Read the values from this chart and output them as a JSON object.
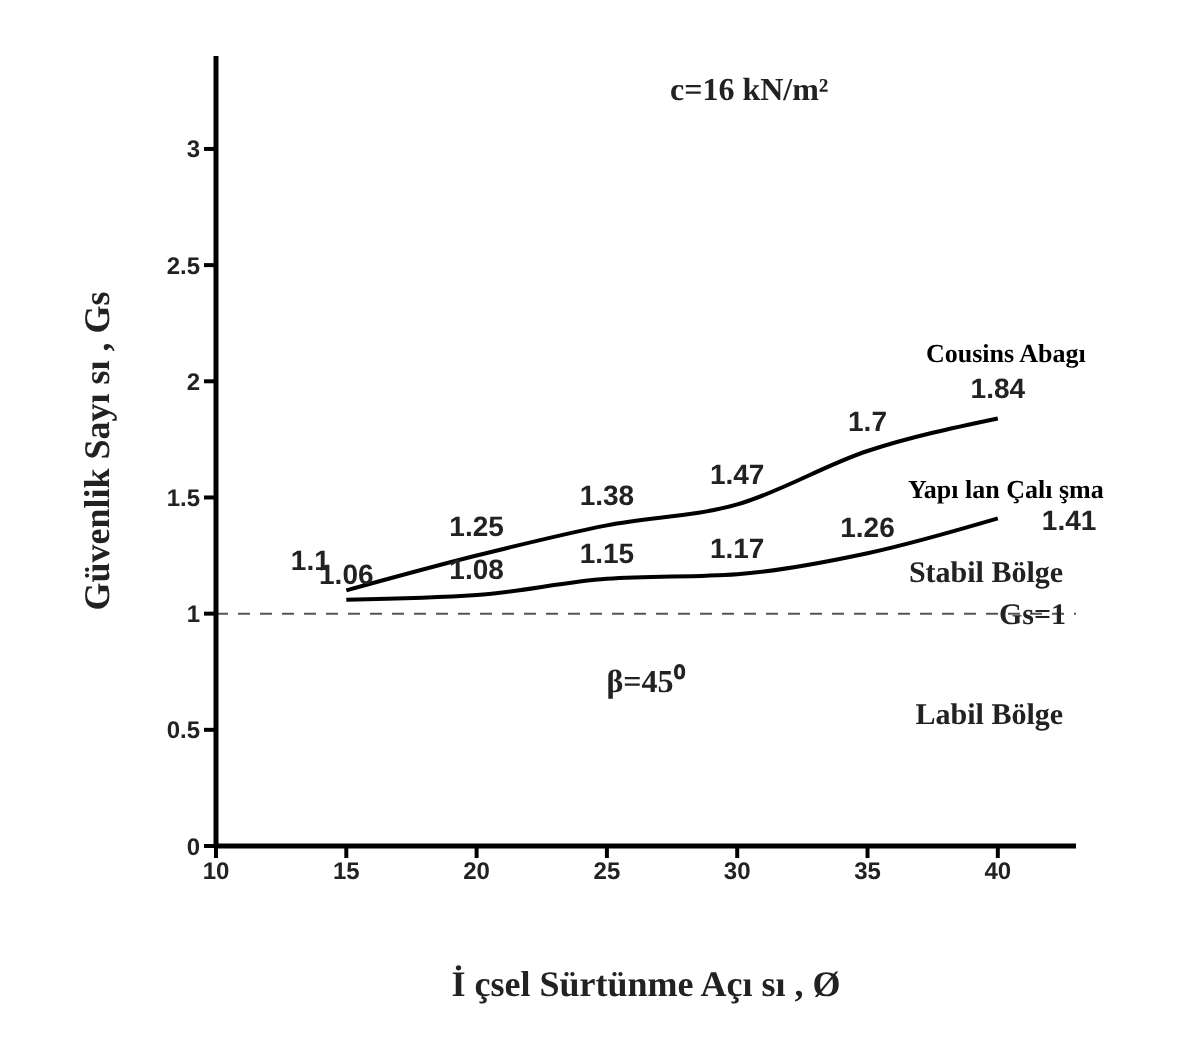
{
  "chart_data": {
    "type": "line",
    "xlabel": "İ çsel Sürtünme Açı sı , Ø",
    "ylabel": "Güvenlik Sayı sı , Gs",
    "x": [
      15,
      20,
      25,
      30,
      35,
      40
    ],
    "series": [
      {
        "name": "Cousins Abagı",
        "color": "#000000",
        "values": [
          1.1,
          1.25,
          1.38,
          1.47,
          1.7,
          1.84
        ]
      },
      {
        "name": "Yapı lan Çalı şma",
        "color": "#000000",
        "values": [
          1.06,
          1.08,
          1.15,
          1.17,
          1.26,
          1.41
        ]
      }
    ],
    "xlim": [
      10,
      43
    ],
    "xticks": [
      10,
      15,
      20,
      25,
      30,
      35,
      40
    ],
    "ylim": [
      0,
      3.4
    ],
    "yticks": [
      0,
      0.5,
      1,
      1.5,
      2,
      2.5,
      3
    ],
    "ref_lines": [
      {
        "axis": "y",
        "value": 1,
        "label": "Gs=1",
        "color": "#555555",
        "line_style": "dashed"
      }
    ],
    "annotations": [
      "c=16 kN/m²",
      "β=45⁰",
      "Stabil Bölge",
      "Labil Bölge"
    ],
    "data_labels": true,
    "marker": "none",
    "line_style": "solid"
  }
}
